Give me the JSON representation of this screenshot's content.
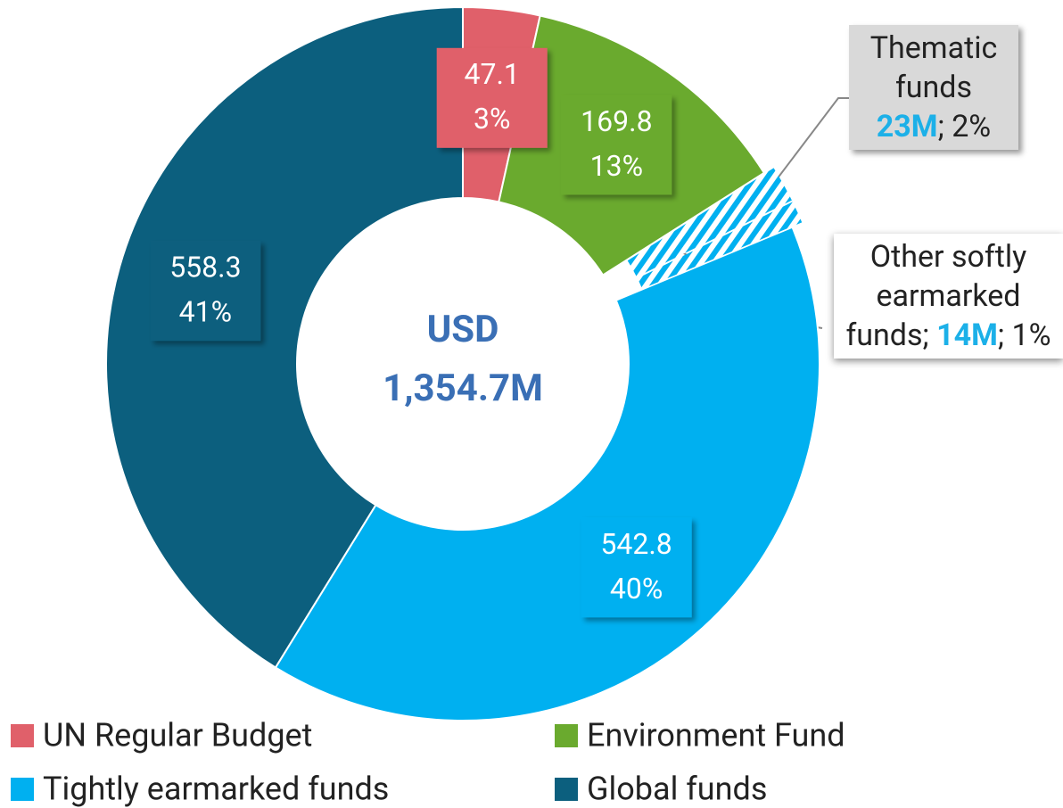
{
  "chart_data": {
    "type": "donut",
    "center_label": [
      "USD",
      "1,354.7M"
    ],
    "categories": [
      "UN Regular Budget",
      "Environment Fund",
      "Thematic funds",
      "Other softly earmarked funds",
      "Tightly earmarked funds",
      "Global funds"
    ],
    "values": [
      47.1,
      169.8,
      23,
      14,
      542.8,
      558.3
    ],
    "value_labels": [
      "47.1",
      "169.8",
      "23M",
      "14M",
      "542.8",
      "558.3"
    ],
    "percents": [
      3,
      13,
      2,
      1,
      40,
      41
    ],
    "percent_labels": [
      "3%",
      "13%",
      "2%",
      "1%",
      "40%",
      "41%"
    ],
    "colors": [
      "#e0606a",
      "#6aaa2e",
      "#00b0f0",
      "#00b0f0",
      "#00b0f0",
      "#0c5f7e"
    ],
    "hatched": [
      false,
      false,
      true,
      true,
      false,
      false
    ],
    "callout_separator": "; "
  }
}
